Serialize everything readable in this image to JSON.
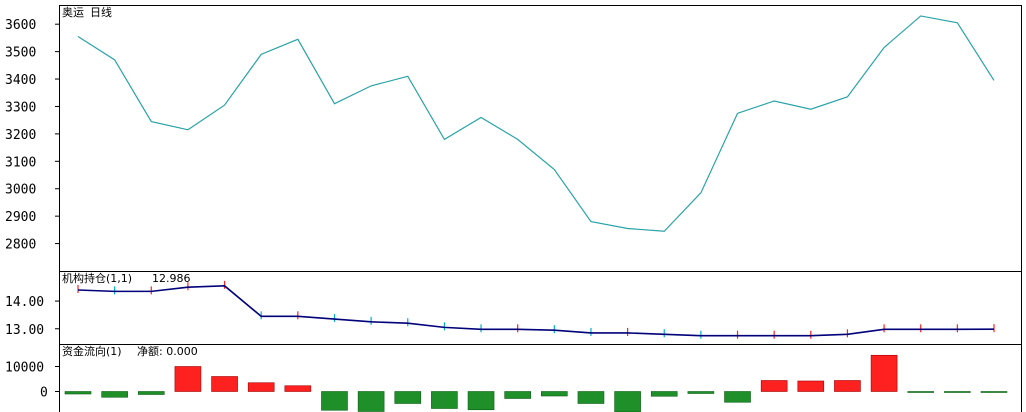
{
  "main_panel": {
    "stock_name": "奥运",
    "period_label": "日线"
  },
  "indicator1": {
    "name": "机构持仓(1,1)",
    "value": "12.986"
  },
  "indicator2": {
    "name": "资金流向(1)",
    "value_label": "净额: 0.000"
  },
  "colors": {
    "price_line": "#2aa3a8",
    "inst_line": "#00007a",
    "bar_up": "#ff2020",
    "bar_down": "#1f8f2a",
    "period_label": "#cc0000",
    "indicator_value": "#0000cc"
  },
  "chart_data": [
    {
      "type": "line",
      "panel": "price",
      "y_ticks": [
        2800,
        2900,
        3000,
        3100,
        3200,
        3300,
        3400,
        3500,
        3600
      ],
      "ylim": [
        2700,
        3670
      ],
      "values": [
        3555,
        3470,
        3245,
        3215,
        3305,
        3490,
        3545,
        3310,
        3375,
        3410,
        3180,
        3260,
        3180,
        3070,
        2880,
        2855,
        2845,
        2985,
        3275,
        3320,
        3290,
        3335,
        3515,
        3630,
        3605,
        3395
      ]
    },
    {
      "type": "line",
      "panel": "institutional_holdings",
      "y_ticks": [
        13.0,
        14.0
      ],
      "ylim": [
        12.45,
        15.05
      ],
      "values": [
        14.4,
        14.35,
        14.35,
        14.5,
        14.55,
        13.45,
        13.45,
        13.35,
        13.25,
        13.2,
        13.05,
        12.98,
        12.98,
        12.95,
        12.85,
        12.85,
        12.8,
        12.75,
        12.75,
        12.75,
        12.75,
        12.8,
        12.98,
        12.98,
        12.98,
        12.986
      ]
    },
    {
      "type": "bar",
      "panel": "money_flow",
      "y_ticks": [
        0,
        10000
      ],
      "values": [
        -1000,
        -2300,
        -1200,
        10000,
        6000,
        3500,
        2300,
        -7500,
        -8000,
        -4800,
        -6800,
        -7300,
        -2800,
        -1800,
        -4800,
        -9000,
        -1900,
        -800,
        -4300,
        4400,
        4200,
        4400,
        14500,
        -400,
        -400,
        -400
      ]
    }
  ]
}
